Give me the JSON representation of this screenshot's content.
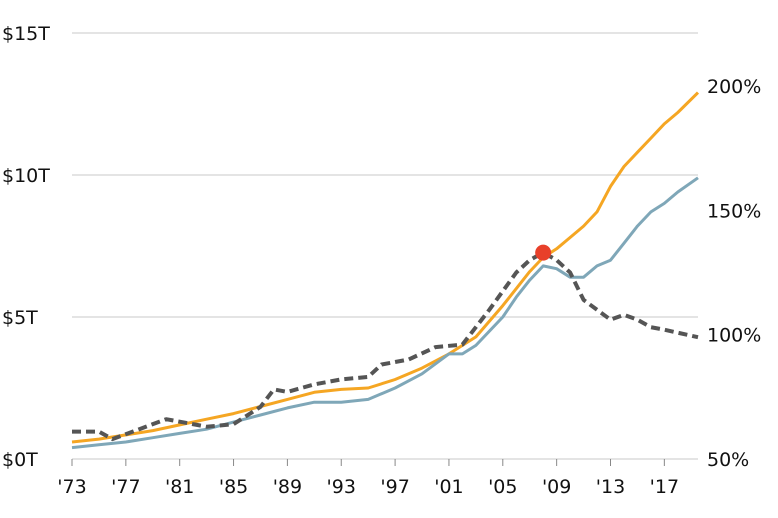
{
  "chart_data": {
    "type": "line",
    "title": "",
    "xlabel": "",
    "ylabel": "",
    "x_tick_labels": [
      "'73",
      "'77",
      "'81",
      "'85",
      "'89",
      "'93",
      "'97",
      "'01",
      "'05",
      "'09",
      "'13",
      "'17"
    ],
    "x_tick_values": [
      1973,
      1977,
      1981,
      1985,
      1989,
      1993,
      1997,
      2001,
      2005,
      2009,
      2013,
      2017
    ],
    "xlim": [
      1973,
      2019.5
    ],
    "y_left": {
      "ticks": [
        0,
        5,
        10,
        15
      ],
      "tick_labels": [
        "$0T",
        "$5T",
        "$10T",
        "$15T"
      ],
      "lim": [
        0,
        15
      ]
    },
    "y_right": {
      "ticks": [
        50,
        100,
        150,
        200
      ],
      "tick_labels": [
        "50%",
        "100%",
        "150%",
        "200%"
      ],
      "lim": [
        50,
        200
      ]
    },
    "grid": "horizontal",
    "legend": "none",
    "series": [
      {
        "axis": "left",
        "color": "#f5a623",
        "style": "solid",
        "x": [
          1973,
          1975,
          1977,
          1979,
          1981,
          1983,
          1985,
          1987,
          1989,
          1991,
          1993,
          1995,
          1997,
          1999,
          2001,
          2003,
          2005,
          2006,
          2007,
          2008,
          2009,
          2010,
          2011,
          2012,
          2013,
          2014,
          2015,
          2016,
          2017,
          2018,
          2019.5
        ],
        "values": [
          0.6,
          0.7,
          0.85,
          1.0,
          1.2,
          1.4,
          1.6,
          1.85,
          2.1,
          2.35,
          2.45,
          2.5,
          2.8,
          3.2,
          3.7,
          4.3,
          5.4,
          6.0,
          6.6,
          7.1,
          7.4,
          7.8,
          8.2,
          8.7,
          9.6,
          10.3,
          10.8,
          11.3,
          11.8,
          12.2,
          12.9
        ]
      },
      {
        "axis": "left",
        "color": "#7fa7b8",
        "style": "solid",
        "x": [
          1973,
          1975,
          1977,
          1979,
          1981,
          1983,
          1985,
          1987,
          1989,
          1991,
          1993,
          1995,
          1997,
          1999,
          2001,
          2002,
          2003,
          2005,
          2006,
          2007,
          2008,
          2009,
          2010,
          2011,
          2012,
          2013,
          2014,
          2015,
          2016,
          2017,
          2018,
          2019.5
        ],
        "values": [
          0.4,
          0.5,
          0.6,
          0.75,
          0.9,
          1.05,
          1.3,
          1.55,
          1.8,
          2.0,
          2.0,
          2.1,
          2.5,
          3.0,
          3.7,
          3.7,
          4.0,
          5.0,
          5.7,
          6.3,
          6.8,
          6.7,
          6.4,
          6.4,
          6.8,
          7.0,
          7.6,
          8.2,
          8.7,
          9.0,
          9.4,
          9.9
        ]
      },
      {
        "axis": "right",
        "color": "#555555",
        "style": "dashed",
        "x": [
          1973,
          1975,
          1976,
          1978,
          1980,
          1981,
          1983,
          1985,
          1987,
          1988,
          1989,
          1991,
          1993,
          1995,
          1996,
          1998,
          2000,
          2002,
          2004,
          2006,
          2007,
          2008,
          2009,
          2010,
          2011,
          2013,
          2014,
          2015,
          2016,
          2017,
          2019.5
        ],
        "values": [
          61,
          61,
          58,
          62,
          66,
          65,
          63,
          64,
          71,
          78,
          77,
          80,
          82,
          83,
          88,
          90,
          95,
          96,
          110,
          125,
          130,
          133,
          130,
          125,
          114,
          106,
          108,
          106,
          103,
          102,
          99
        ]
      }
    ],
    "annotations": [
      {
        "type": "point",
        "axis": "right",
        "x": 2008,
        "value": 133,
        "color": "#e8402a"
      }
    ]
  }
}
